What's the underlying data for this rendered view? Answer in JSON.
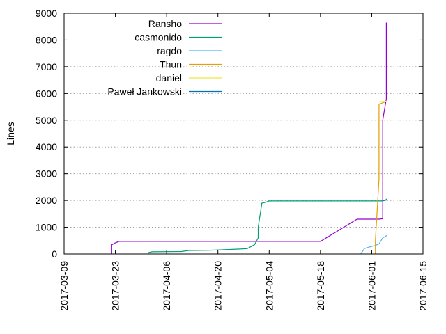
{
  "chart_data": {
    "type": "line",
    "title": "",
    "xlabel": "",
    "ylabel": "Lines",
    "xlim": [
      "2017-03-09",
      "2017-06-15"
    ],
    "ylim": [
      0,
      9000
    ],
    "grid": true,
    "legend_position": "top-left",
    "x_ticks": [
      "2017-03-09",
      "2017-03-23",
      "2017-04-06",
      "2017-04-20",
      "2017-05-04",
      "2017-05-18",
      "2017-06-01",
      "2017-06-15"
    ],
    "y_ticks": [
      0,
      1000,
      2000,
      3000,
      4000,
      5000,
      6000,
      7000,
      8000,
      9000
    ],
    "series": [
      {
        "name": "Ransho",
        "color": "#9400d3",
        "points": [
          [
            "2017-03-22",
            0
          ],
          [
            "2017-03-22",
            340
          ],
          [
            "2017-03-23",
            420
          ],
          [
            "2017-03-24",
            470
          ],
          [
            "2017-05-18",
            470
          ],
          [
            "2017-05-28",
            1300
          ],
          [
            "2017-06-03",
            1300
          ],
          [
            "2017-06-04",
            1320
          ],
          [
            "2017-06-04",
            1450
          ],
          [
            "2017-06-04",
            5000
          ],
          [
            "2017-06-05",
            5800
          ],
          [
            "2017-06-05",
            8550
          ],
          [
            "2017-06-05",
            8600
          ],
          [
            "2017-06-05",
            8650
          ]
        ]
      },
      {
        "name": "casmonido",
        "color": "#009e73",
        "points": [
          [
            "2017-04-01",
            0
          ],
          [
            "2017-04-01",
            50
          ],
          [
            "2017-04-02",
            80
          ],
          [
            "2017-04-10",
            90
          ],
          [
            "2017-04-12",
            130
          ],
          [
            "2017-04-18",
            140
          ],
          [
            "2017-04-20",
            150
          ],
          [
            "2017-04-25",
            180
          ],
          [
            "2017-04-28",
            200
          ],
          [
            "2017-04-30",
            350
          ],
          [
            "2017-05-01",
            600
          ],
          [
            "2017-05-01",
            1000
          ],
          [
            "2017-05-02",
            1900
          ],
          [
            "2017-05-03",
            1930
          ],
          [
            "2017-05-04",
            1980
          ],
          [
            "2017-06-04",
            1980
          ],
          [
            "2017-06-05",
            2030
          ],
          [
            "2017-06-05",
            2060
          ]
        ]
      },
      {
        "name": "ragdo",
        "color": "#56b4e9",
        "points": [
          [
            "2017-05-29",
            0
          ],
          [
            "2017-05-30",
            200
          ],
          [
            "2017-05-31",
            250
          ],
          [
            "2017-06-02",
            320
          ],
          [
            "2017-06-03",
            380
          ],
          [
            "2017-06-04",
            600
          ],
          [
            "2017-06-05",
            680
          ],
          [
            "2017-06-05",
            700
          ]
        ]
      },
      {
        "name": "Thun",
        "color": "#e69f00",
        "points": [
          [
            "2017-06-02",
            0
          ],
          [
            "2017-06-02",
            500
          ],
          [
            "2017-06-03",
            2800
          ],
          [
            "2017-06-03",
            5600
          ],
          [
            "2017-06-04",
            5650
          ],
          [
            "2017-06-05",
            5700
          ]
        ]
      },
      {
        "name": "daniel",
        "color": "#f0e442",
        "points": [
          [
            "2017-06-03",
            5690
          ],
          [
            "2017-06-05",
            5710
          ]
        ]
      },
      {
        "name": "Paweł Jankowski",
        "color": "#0072b2",
        "points": [
          [
            "2017-06-04",
            1990
          ],
          [
            "2017-06-05",
            2010
          ]
        ]
      }
    ]
  }
}
